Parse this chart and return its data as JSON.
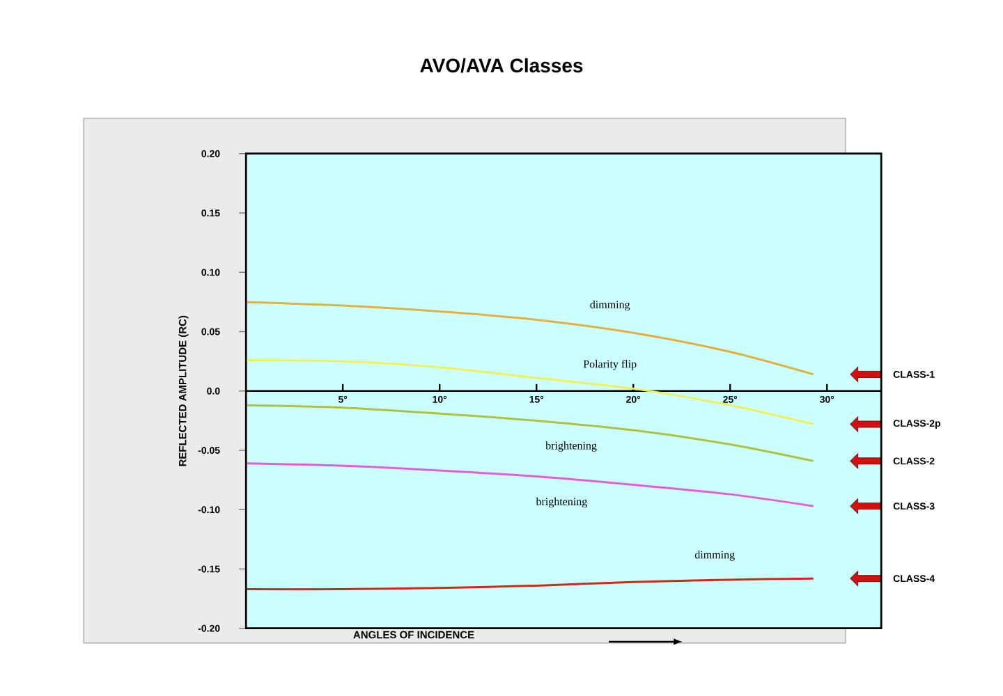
{
  "chart_data": {
    "type": "line",
    "title": "AVO/AVA Classes",
    "xlabel": "ANGLES OF INCIDENCE",
    "ylabel": "REFLECTED AMPLITUDE (RC)",
    "xlim": [
      0,
      32.8
    ],
    "ylim": [
      -0.2,
      0.2
    ],
    "xticks": [
      {
        "value": 5,
        "label": "5°"
      },
      {
        "value": 10,
        "label": "10°"
      },
      {
        "value": 15,
        "label": "15°"
      },
      {
        "value": 20,
        "label": "20°"
      },
      {
        "value": 25,
        "label": "25°"
      },
      {
        "value": 30,
        "label": "30°"
      }
    ],
    "yticks": [
      {
        "value": 0.2,
        "label": "0.20"
      },
      {
        "value": 0.15,
        "label": "0.15"
      },
      {
        "value": 0.1,
        "label": "0.10"
      },
      {
        "value": 0.05,
        "label": "0.05"
      },
      {
        "value": 0,
        "label": "0.0"
      },
      {
        "value": -0.05,
        "label": "-0.05"
      },
      {
        "value": -0.1,
        "label": "-0.10"
      },
      {
        "value": -0.15,
        "label": "-0.15"
      },
      {
        "value": -0.2,
        "label": "-0.20"
      }
    ],
    "x": [
      0,
      5,
      10,
      15,
      20,
      25,
      29.3
    ],
    "series": [
      {
        "name": "CLASS-1",
        "color": "#e0b040",
        "values": [
          0.075,
          0.072,
          0.067,
          0.06,
          0.049,
          0.033,
          0.014
        ]
      },
      {
        "name": "CLASS-2p",
        "color": "#eef060",
        "values": [
          0.026,
          0.025,
          0.02,
          0.011,
          0.002,
          -0.012,
          -0.028
        ]
      },
      {
        "name": "CLASS-2",
        "color": "#b0c040",
        "values": [
          -0.012,
          -0.014,
          -0.019,
          -0.025,
          -0.033,
          -0.045,
          -0.059
        ]
      },
      {
        "name": "CLASS-3",
        "color": "#e060d8",
        "values": [
          -0.061,
          -0.063,
          -0.067,
          -0.072,
          -0.079,
          -0.087,
          -0.097
        ]
      },
      {
        "name": "CLASS-4",
        "color": "#d02818",
        "values": [
          -0.167,
          -0.167,
          -0.166,
          -0.164,
          -0.161,
          -0.159,
          -0.158
        ]
      }
    ],
    "annotations": [
      "dimming",
      "Polarity flip",
      "brightening",
      "brightening",
      "dimming"
    ]
  }
}
